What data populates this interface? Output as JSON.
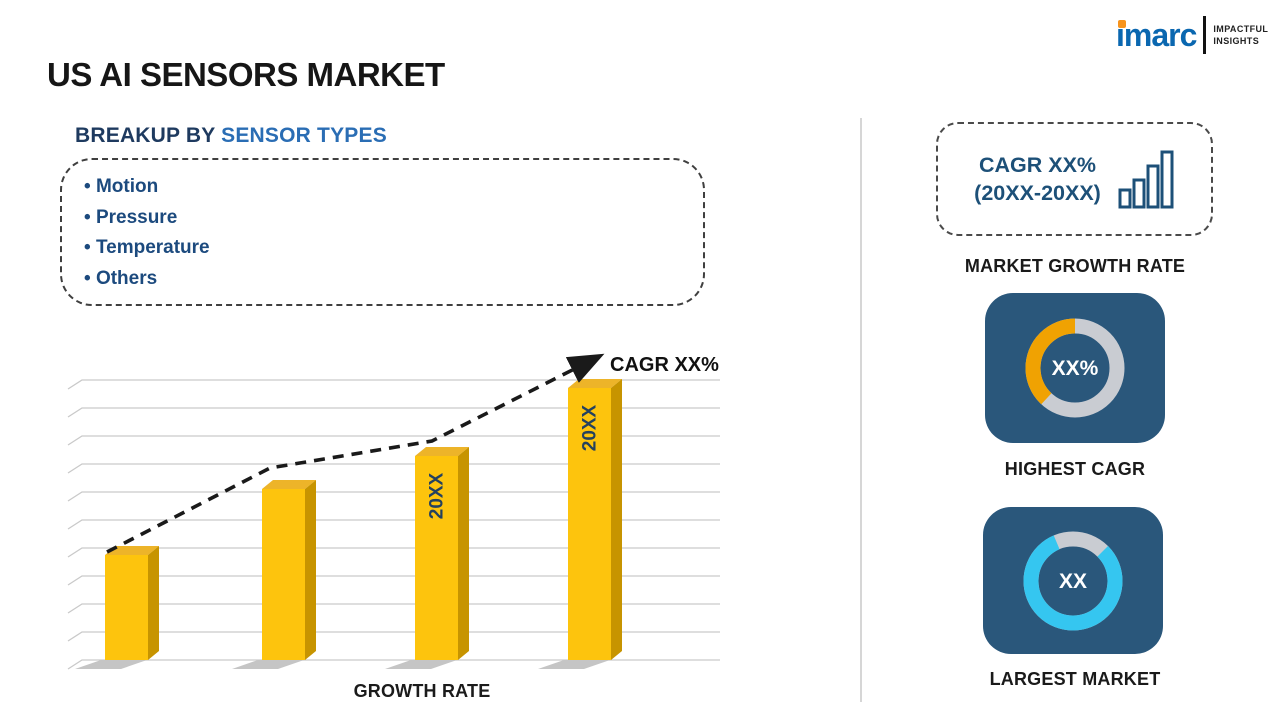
{
  "page": {
    "title": "US AI SENSORS MARKET"
  },
  "logo": {
    "brand": "imarc",
    "tagline_line1": "IMPACTFUL",
    "tagline_line2": "INSIGHTS",
    "brand_color": "#0a67b0",
    "accent_color": "#f7941d"
  },
  "breakup": {
    "heading_prefix": "BREAKUP BY ",
    "heading_highlight": "SENSOR TYPES",
    "items": [
      "Motion",
      "Pressure",
      "Temperature",
      "Others"
    ]
  },
  "chart_data": {
    "type": "bar",
    "style": "3d-column",
    "values": [
      3.75,
      6.1,
      7.3,
      9.7
    ],
    "ylim": [
      0,
      10
    ],
    "bar_labels": [
      "",
      "",
      "20XX",
      "20XX"
    ],
    "trend_annotation": "CAGR XX%",
    "xlabel": "GROWTH RATE",
    "bar_color": "#fdc40d",
    "bar_side_color": "#c79400",
    "bar_top_color": "#edb429",
    "grid": true,
    "legend": false
  },
  "right": {
    "growth_card": {
      "line1": "CAGR XX%",
      "line2": "(20XX-20XX)",
      "label": "MARKET GROWTH RATE"
    },
    "highest_cagr": {
      "value": "XX%",
      "label": "HIGHEST CAGR",
      "arc_percent": 38,
      "arc_color": "#f0a202",
      "track_color": "#c9ccd2",
      "card_color": "#2a577b"
    },
    "largest_market": {
      "value": "XX",
      "label": "LARGEST MARKET",
      "arc_percent": 81,
      "arc_color": "#35c6f0",
      "track_color": "#c9ccd2",
      "card_color": "#2a577b"
    }
  }
}
